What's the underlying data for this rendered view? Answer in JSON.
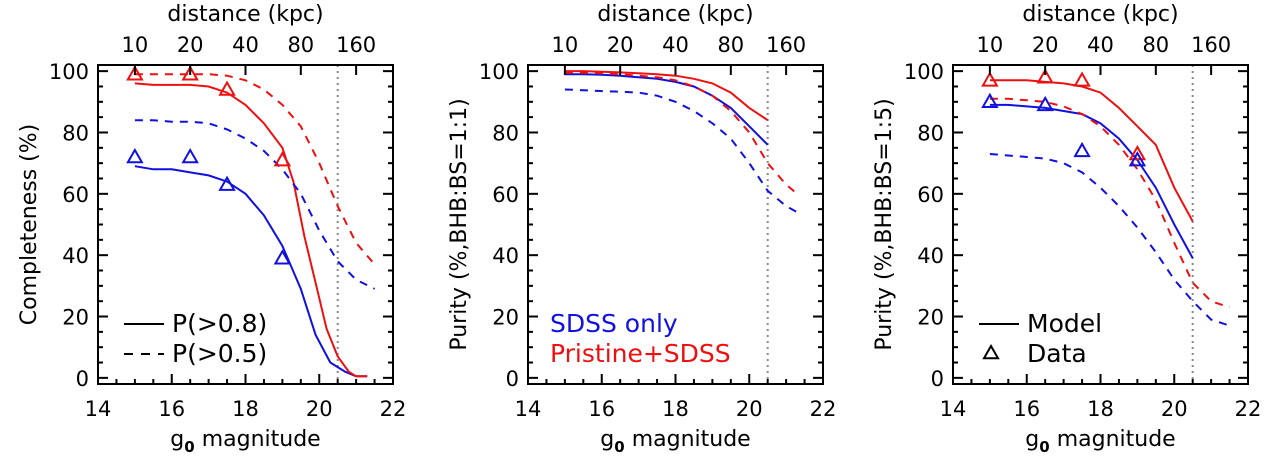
{
  "colors": {
    "blue": "#1010e0",
    "red": "#ee1010",
    "grey": "#888888",
    "black": "#000000"
  },
  "chart_data": [
    {
      "type": "line",
      "xlabel": "g0 magnitude",
      "ylabel": "Completeness (%)",
      "top_axis_label": "distance (kpc)",
      "top_ticks": [
        {
          "label": "10",
          "g0": 15.0
        },
        {
          "label": "20",
          "g0": 16.5
        },
        {
          "label": "40",
          "g0": 18.0
        },
        {
          "label": "80",
          "g0": 19.5
        },
        {
          "label": "160",
          "g0": 21.0
        }
      ],
      "xlim": [
        14,
        22
      ],
      "ylim": [
        -2,
        102
      ],
      "xticks": [
        14,
        16,
        18,
        20,
        22
      ],
      "yticks": [
        0,
        20,
        40,
        60,
        80,
        100
      ],
      "vline": 20.5,
      "series": [
        {
          "color": "blue",
          "dash": "solid",
          "x": [
            15,
            15.5,
            16,
            16.5,
            17,
            17.5,
            18,
            18.5,
            19,
            19.5,
            19.9,
            20.3,
            20.7,
            21.0,
            21.3
          ],
          "y": [
            69,
            68,
            68,
            67,
            66,
            64,
            60,
            53,
            43,
            29,
            14,
            5,
            2,
            0.5,
            0.5
          ]
        },
        {
          "color": "red",
          "dash": "solid",
          "x": [
            15,
            15.5,
            16,
            16.5,
            17,
            17.5,
            18,
            18.5,
            19,
            19.3,
            19.6,
            19.9,
            20.2,
            20.5,
            20.8,
            21.0,
            21.3
          ],
          "y": [
            96,
            95.5,
            95.5,
            95.5,
            95,
            93,
            89,
            83,
            75,
            64,
            46,
            31,
            16,
            7,
            2,
            0.5,
            0.5
          ]
        },
        {
          "color": "blue",
          "dash": "dashed",
          "x": [
            15,
            15.5,
            16,
            16.5,
            17,
            17.5,
            18,
            18.5,
            19,
            19.5,
            20,
            20.5,
            21,
            21.5
          ],
          "y": [
            84,
            84,
            83.5,
            83.5,
            83,
            81,
            78,
            74,
            68,
            60,
            48,
            38,
            32,
            29
          ]
        },
        {
          "color": "red",
          "dash": "dashed",
          "x": [
            15,
            15.5,
            16,
            16.5,
            17,
            17.5,
            18,
            18.5,
            19,
            19.5,
            20,
            20.5,
            21,
            21.5
          ],
          "y": [
            99,
            99,
            99,
            99,
            99,
            98.5,
            97,
            94,
            89,
            82,
            70,
            56,
            44,
            37
          ]
        }
      ],
      "markers": [
        {
          "color": "red",
          "x": [
            15.0,
            16.5,
            17.5,
            19.0
          ],
          "y": [
            99,
            99,
            94,
            71
          ]
        },
        {
          "color": "blue",
          "x": [
            15.0,
            16.5,
            17.5,
            19.0
          ],
          "y": [
            72,
            72,
            63,
            39
          ]
        }
      ],
      "legend": {
        "position": "bottom-left",
        "entries": [
          {
            "label": "P(>0.8)",
            "dash": "solid",
            "color": "black"
          },
          {
            "label": "P(>0.5)",
            "dash": "dashed",
            "color": "black"
          }
        ]
      }
    },
    {
      "type": "line",
      "xlabel": "g0 magnitude",
      "ylabel": "Purity (%,BHB:BS=1:1)",
      "top_axis_label": "distance (kpc)",
      "top_ticks": [
        {
          "label": "10",
          "g0": 15.0
        },
        {
          "label": "20",
          "g0": 16.5
        },
        {
          "label": "40",
          "g0": 18.0
        },
        {
          "label": "80",
          "g0": 19.5
        },
        {
          "label": "160",
          "g0": 21.0
        }
      ],
      "xlim": [
        14,
        22
      ],
      "ylim": [
        -2,
        102
      ],
      "xticks": [
        14,
        16,
        18,
        20,
        22
      ],
      "yticks": [
        0,
        20,
        40,
        60,
        80,
        100
      ],
      "vline": 20.5,
      "series": [
        {
          "color": "red",
          "dash": "solid",
          "x": [
            15,
            15.5,
            16,
            16.5,
            17,
            17.5,
            18,
            18.5,
            19,
            19.5,
            20,
            20.5
          ],
          "y": [
            100,
            100,
            99.8,
            99.6,
            99.3,
            99,
            98.5,
            97.5,
            96,
            93,
            88,
            84
          ]
        },
        {
          "color": "blue",
          "dash": "solid",
          "x": [
            15,
            15.5,
            16,
            16.5,
            17,
            17.5,
            18,
            18.5,
            19,
            19.5,
            20,
            20.5
          ],
          "y": [
            99,
            99,
            98.8,
            98.5,
            98,
            97.5,
            96.5,
            95,
            92,
            88,
            82,
            76
          ]
        },
        {
          "color": "red",
          "dash": "dashed",
          "x": [
            15,
            15.5,
            16,
            16.5,
            17,
            17.5,
            18,
            18.5,
            19,
            19.5,
            20,
            20.5,
            21,
            21.3
          ],
          "y": [
            99.5,
            99.5,
            99.3,
            99,
            98.5,
            98,
            97,
            95,
            92,
            87,
            80,
            70,
            63,
            60
          ]
        },
        {
          "color": "blue",
          "dash": "dashed",
          "x": [
            15,
            15.5,
            16,
            16.5,
            17,
            17.5,
            18,
            18.5,
            19,
            19.5,
            20,
            20.5,
            21,
            21.3
          ],
          "y": [
            94,
            93.8,
            93.5,
            93.3,
            93,
            92,
            90,
            87,
            83,
            78,
            70,
            61,
            56,
            54
          ]
        }
      ],
      "markers": [],
      "legend": {
        "position": "bottom-left",
        "entries": [
          {
            "label": "SDSS only",
            "color": "blue"
          },
          {
            "label": "Pristine+SDSS",
            "color": "red"
          }
        ]
      }
    },
    {
      "type": "line",
      "xlabel": "g0 magnitude",
      "ylabel": "Purity (%,BHB:BS=1:5)",
      "top_axis_label": "distance (kpc)",
      "top_ticks": [
        {
          "label": "10",
          "g0": 15.0
        },
        {
          "label": "20",
          "g0": 16.5
        },
        {
          "label": "40",
          "g0": 18.0
        },
        {
          "label": "80",
          "g0": 19.5
        },
        {
          "label": "160",
          "g0": 21.0
        }
      ],
      "xlim": [
        14,
        22
      ],
      "ylim": [
        -2,
        102
      ],
      "xticks": [
        14,
        16,
        18,
        20,
        22
      ],
      "yticks": [
        0,
        20,
        40,
        60,
        80,
        100
      ],
      "vline": 20.5,
      "series": [
        {
          "color": "red",
          "dash": "solid",
          "x": [
            15,
            15.5,
            16,
            16.5,
            17,
            17.5,
            18,
            18.5,
            19,
            19.5,
            20,
            20.5
          ],
          "y": [
            97,
            97,
            97,
            96.5,
            96,
            95,
            93,
            88,
            82,
            76,
            62,
            51
          ]
        },
        {
          "color": "blue",
          "dash": "solid",
          "x": [
            15,
            15.5,
            16,
            16.5,
            17,
            17.5,
            18,
            18.5,
            19,
            19.5,
            20,
            20.5
          ],
          "y": [
            89,
            89,
            88.5,
            88,
            87,
            86,
            83,
            78,
            71,
            62,
            50,
            39
          ]
        },
        {
          "color": "red",
          "dash": "dashed",
          "x": [
            15,
            15.5,
            16,
            16.5,
            17,
            17.5,
            18,
            18.5,
            19,
            19.5,
            20,
            20.5,
            21,
            21.5
          ],
          "y": [
            91,
            91,
            90.5,
            90,
            88.5,
            86,
            82,
            76,
            68,
            58,
            44,
            31,
            25,
            23
          ]
        },
        {
          "color": "blue",
          "dash": "dashed",
          "x": [
            15,
            15.5,
            16,
            16.5,
            17,
            17.5,
            18,
            18.5,
            19,
            19.5,
            20,
            20.5,
            21,
            21.5
          ],
          "y": [
            73,
            72.5,
            72,
            71.5,
            70,
            67,
            62,
            56,
            49,
            41,
            32,
            25,
            19,
            17
          ]
        }
      ],
      "markers": [
        {
          "color": "red",
          "x": [
            15.0,
            16.5,
            17.5,
            19.0
          ],
          "y": [
            97,
            98,
            97,
            73
          ]
        },
        {
          "color": "blue",
          "x": [
            15.0,
            16.5,
            17.5,
            19.0
          ],
          "y": [
            90,
            89,
            74,
            71
          ]
        }
      ],
      "legend": {
        "position": "bottom-left",
        "entries": [
          {
            "label": "Model",
            "dash": "solid",
            "color": "black"
          },
          {
            "label": "Data",
            "marker": "triangle",
            "color": "black"
          }
        ]
      }
    }
  ]
}
